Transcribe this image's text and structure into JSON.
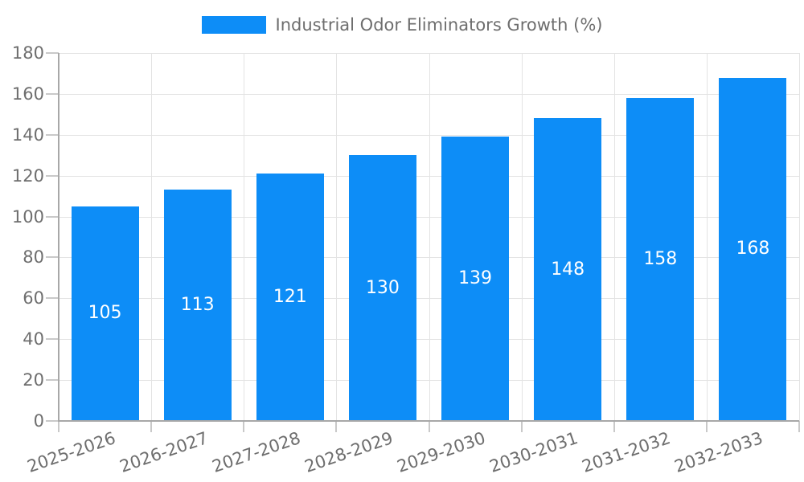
{
  "legend": {
    "position": "top",
    "label": "Industrial Odor Eliminators Growth (%)"
  },
  "chart_data": {
    "type": "bar",
    "title": "Industrial Odor Eliminators Growth (%)",
    "categories": [
      "2025-2026",
      "2026-2027",
      "2027-2028",
      "2028-2029",
      "2029-2030",
      "2030-2031",
      "2031-2032",
      "2032-2033"
    ],
    "values": [
      105,
      113,
      121,
      130,
      139,
      148,
      158,
      168
    ],
    "xlabel": "",
    "ylabel": "",
    "ylim": [
      0,
      180
    ],
    "yticks": [
      0,
      20,
      40,
      60,
      80,
      100,
      120,
      140,
      160,
      180
    ],
    "grid": true,
    "legend_position": "top",
    "value_labels": "centered-inside-bars",
    "x_label_rotation_deg": -19
  },
  "colors": {
    "bar": "#0d8df7",
    "bar_value_text": "#ffffff",
    "axis_line": "#a8a8a8",
    "gridline": "#e3e3e3",
    "tick_mark": "#c9c9c9",
    "tick_text": "#6e6e6e",
    "background": "#ffffff"
  }
}
